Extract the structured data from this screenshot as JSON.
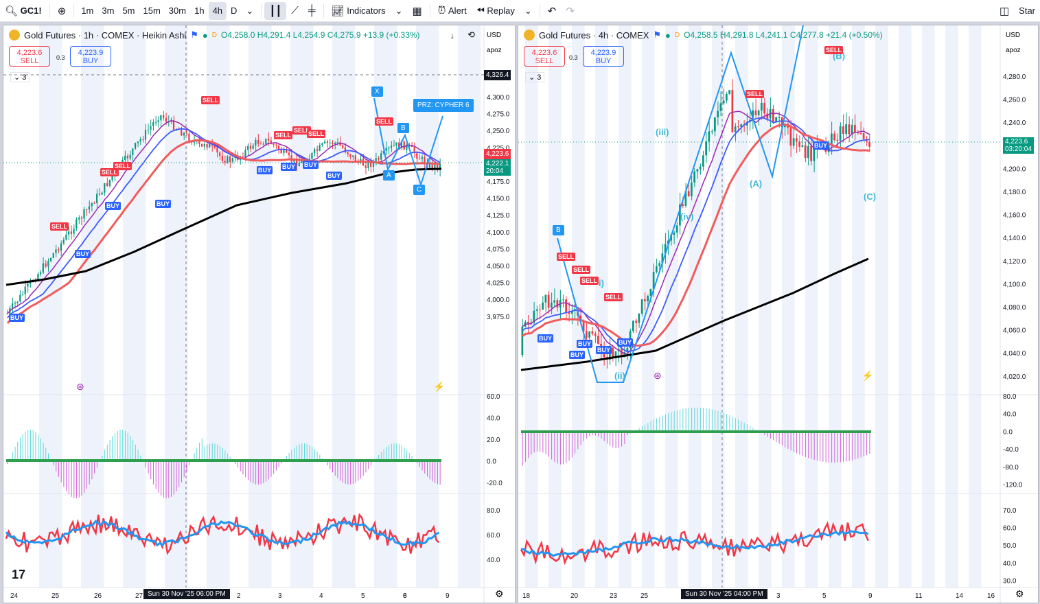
{
  "toolbar": {
    "symbol": "GC1!",
    "timeframes": [
      "1m",
      "3m",
      "5m",
      "15m",
      "30m",
      "1h",
      "4h",
      "D"
    ],
    "active_timeframe": "4h",
    "indicators_label": "Indicators",
    "alert_label": "Alert",
    "replay_label": "Replay",
    "start_label": "Star"
  },
  "left_chart": {
    "title": "Gold Futures · 1h · COMEX · Heikin Ashi",
    "ohlc": "O4,258.0  H4,291.4  L4,254.9  C4,275.9  +13.9 (+0.33%)",
    "sell_price": "4,223.6",
    "sell_label": "SELL",
    "spread": "0.3",
    "buy_price": "4,223.9",
    "buy_label": "BUY",
    "indicator_count": "3",
    "currency": "USD",
    "scale_mode": "apoz",
    "price_labels": [
      "4,300.0",
      "4,275.0",
      "4,250.0",
      "4,225.0",
      "4,200.0",
      "4,175.0",
      "4,150.0",
      "4,125.0",
      "4,100.0",
      "4,075.0",
      "4,050.0",
      "4,025.0",
      "4,000.0",
      "3,975.0"
    ],
    "crosshair_price": "4,326.4",
    "last_price": "4,223.6",
    "tag_price": "4,222.1",
    "tag_countdown": "20:04",
    "osc_labels": [
      "60.0",
      "40.0",
      "20.0",
      "0.0",
      "-20.0"
    ],
    "rsi_labels": [
      "80.0",
      "60.0",
      "40.0"
    ],
    "time_labels": [
      "24",
      "25",
      "26",
      "27",
      "2",
      "3",
      "4",
      "5",
      "6",
      "8",
      "9"
    ],
    "crosshair_time": "Sun 30 Nov '25   06:00 PM",
    "pattern_points": [
      "X",
      "A",
      "B",
      "C"
    ],
    "prz_label": "PRZ: CYPHER 6",
    "signals": [
      "SELL",
      "SELL",
      "SELL",
      "SELL",
      "SELL",
      "SELL",
      "SELL",
      "BUY",
      "BUY",
      "BUY",
      "BUY",
      "BUY",
      "BUY",
      "BUY"
    ]
  },
  "right_chart": {
    "title": "Gold Futures · 4h · COMEX",
    "ohlc": "O4,258.5  H4,291.8  L4,241.1  C4,277.8  +21.4 (+0.50%)",
    "sell_price": "4,223.6",
    "sell_label": "SELL",
    "spread": "0.3",
    "buy_price": "4,223.9",
    "buy_label": "BUY",
    "indicator_count": "3",
    "currency": "USD",
    "scale_mode": "apoz",
    "price_labels": [
      "4,280.0",
      "4,260.0",
      "4,240.0",
      "4,220.0",
      "4,200.0",
      "4,180.0",
      "4,160.0",
      "4,140.0",
      "4,120.0",
      "4,100.0",
      "4,080.0",
      "4,060.0",
      "4,040.0",
      "4,020.0"
    ],
    "last_price": "4,223.6",
    "tag_countdown": "03:20:04",
    "osc_labels": [
      "80.0",
      "40.0",
      "0.0",
      "-40.0",
      "-80.0",
      "-120.0"
    ],
    "rsi_labels": [
      "70.0",
      "60.0",
      "50.0",
      "40.0",
      "30.0"
    ],
    "time_labels": [
      "18",
      "20",
      "23",
      "25",
      "3",
      "5",
      "9",
      "11",
      "14",
      "16"
    ],
    "crosshair_time": "Sun 30 Nov '25   04:00 PM",
    "waves": [
      "(iii)",
      "(iv)",
      "(ii)",
      "i)",
      "(A)",
      "(B)",
      "(C)"
    ],
    "point_b": "B"
  },
  "colors": {
    "up": "#089981",
    "down": "#f23645",
    "buy": "#2962ff",
    "ma_black": "#000000",
    "ma_red": "#f15b5b",
    "ma_blue": "#3d5afe",
    "ma_purple": "#9c27b0",
    "wave": "#3fb8d9",
    "pattern": "#2196f3"
  }
}
